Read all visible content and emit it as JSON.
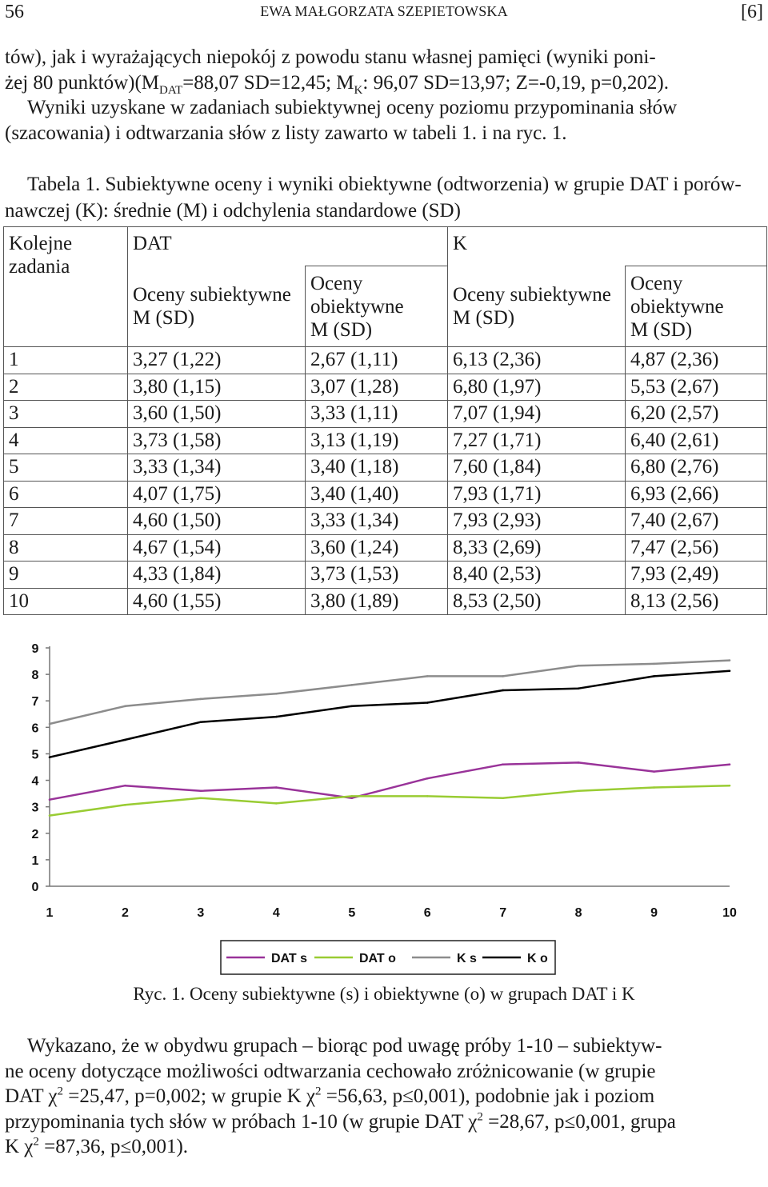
{
  "header": {
    "page_number": "56",
    "running_head": "EWA MAŁGORZATA SZEPIETOWSKA",
    "section_tag": "[6]"
  },
  "intro": {
    "line1": "tów), jak i wyrażających niepokój z powodu stanu własnej pamięci (wyniki poni-",
    "line2_a": "żej 80 punktów)(M",
    "line2_sub1": "DAT",
    "line2_b": "=88,07 SD=12,45; M",
    "line2_sub2": "K",
    "line2_c": ": 96,07 SD=13,97; Z=-0,19, p=0,202).",
    "line3": "Wyniki uzyskane w zadaniach subiektywnej oceny poziomu przypominania słów",
    "line4": "(szacowania) i odtwarzania słów z listy zawarto w tabeli 1. i na ryc. 1."
  },
  "table_caption": {
    "line1": "Tabela 1. Subiektywne oceny i wyniki obiektywne (odtworzenia) w grupie DAT i porów-",
    "line2": "nawczej (K): średnie (M) i odchylenia standardowe (SD)"
  },
  "table": {
    "row_header_l1": "Kolejne",
    "row_header_l2": "zadania",
    "group_dat": "DAT",
    "group_k": "K",
    "sub_subj_l1": "Oceny subiektywne",
    "sub_subj_l2": "M (SD)",
    "sub_obj_l1": "Oceny",
    "sub_obj_l2": "obiektywne",
    "sub_obj_l3": "M (SD)",
    "rows": [
      [
        "1",
        "3,27 (1,22)",
        "2,67 (1,11)",
        "6,13 (2,36)",
        "4,87 (2,36)"
      ],
      [
        "2",
        "3,80 (1,15)",
        "3,07 (1,28)",
        "6,80 (1,97)",
        "5,53 (2,67)"
      ],
      [
        "3",
        "3,60 (1,50)",
        "3,33 (1,11)",
        "7,07 (1,94)",
        "6,20 (2,57)"
      ],
      [
        "4",
        "3,73 (1,58)",
        "3,13 (1,19)",
        "7,27 (1,71)",
        "6,40 (2,61)"
      ],
      [
        "5",
        "3,33 (1,34)",
        "3,40 (1,18)",
        "7,60 (1,84)",
        "6,80 (2,76)"
      ],
      [
        "6",
        "4,07 (1,75)",
        "3,40 (1,40)",
        "7,93 (1,71)",
        "6,93 (2,66)"
      ],
      [
        "7",
        "4,60 (1,50)",
        "3,33 (1,34)",
        "7,93 (2,93)",
        "7,40 (2,67)"
      ],
      [
        "8",
        "4,67 (1,54)",
        "3,60 (1,24)",
        "8,33 (2,69)",
        "7,47 (2,56)"
      ],
      [
        "9",
        "4,33 (1,84)",
        "3,73 (1,53)",
        "8,40 (2,53)",
        "7,93 (2,49)"
      ],
      [
        "10",
        "4,60 (1,55)",
        "3,80 (1,89)",
        "8,53 (2,50)",
        "8,13 (2,56)"
      ]
    ]
  },
  "chart_data": {
    "type": "line",
    "x": [
      1,
      2,
      3,
      4,
      5,
      6,
      7,
      8,
      9,
      10
    ],
    "x_ticks": [
      "1",
      "2",
      "3",
      "4",
      "5",
      "6",
      "7",
      "8",
      "9",
      "10"
    ],
    "y_ticks": [
      "0",
      "1",
      "2",
      "3",
      "4",
      "5",
      "6",
      "7",
      "8",
      "9"
    ],
    "ylim": [
      0,
      9
    ],
    "grid": false,
    "legend_position": "bottom",
    "series": [
      {
        "name": "DAT s",
        "color": "#993399",
        "values": [
          3.27,
          3.8,
          3.6,
          3.73,
          3.33,
          4.07,
          4.6,
          4.67,
          4.33,
          4.6
        ]
      },
      {
        "name": "DAT o",
        "color": "#99cc33",
        "values": [
          2.67,
          3.07,
          3.33,
          3.13,
          3.4,
          3.4,
          3.33,
          3.6,
          3.73,
          3.8
        ]
      },
      {
        "name": "K s",
        "color": "#8c8c8c",
        "values": [
          6.13,
          6.8,
          7.07,
          7.27,
          7.6,
          7.93,
          7.93,
          8.33,
          8.4,
          8.53
        ]
      },
      {
        "name": "K o",
        "color": "#000000",
        "values": [
          4.87,
          5.53,
          6.2,
          6.4,
          6.8,
          6.93,
          7.4,
          7.47,
          7.93,
          8.13
        ]
      }
    ]
  },
  "figure_caption": "Ryc. 1. Oceny subiektywne (s) i obiektywne (o) w grupach DAT i K",
  "conclusion": {
    "l1": "Wykazano, że w obydwu grupach – biorąc pod uwagę próby 1-10 – subiektyw-",
    "l2": "ne oceny dotyczące możliwości odtwarzania cechowało zróżnicowanie (w grupie",
    "l3_a": "DAT χ",
    "l3_sup1": "2",
    "l3_b": " =25,47, p=0,002; w grupie K χ",
    "l3_sup2": "2",
    "l3_c": " =56,63, p≤0,001), podobnie jak i poziom",
    "l4_a": "przypominania tych słów w próbach 1-10 (w grupie DAT χ",
    "l4_sup": "2",
    "l4_b": " =28,67, p≤0,001, grupa",
    "l5_a": "K χ",
    "l5_sup": "2",
    "l5_b": " =87,36, p≤0,001)."
  }
}
